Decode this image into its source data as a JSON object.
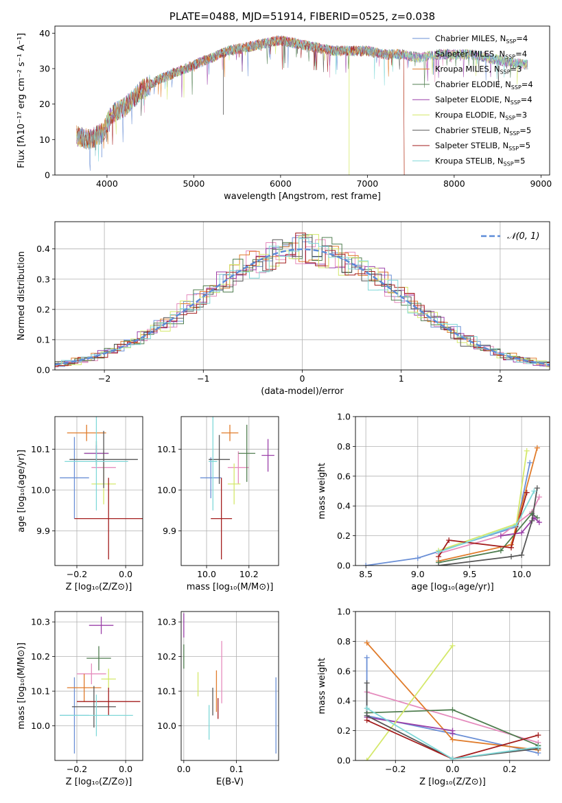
{
  "colors": [
    "#6a8fd6",
    "#e58bbd",
    "#e07b2a",
    "#4f7d4f",
    "#9a3fa8",
    "#d4e86a",
    "#555555",
    "#a31c1c",
    "#7fd8d8"
  ],
  "chart_data": [
    {
      "id": "spectrum",
      "type": "line",
      "title": "PLATE=0488, MJD=51914, FIBERID=0525, z=0.038",
      "xlabel": "wavelength [Angstrom, rest frame]",
      "ylabel": "Flux [fλ10⁻¹⁷ erg cm⁻² s⁻¹ A⁻¹]",
      "xlim": [
        3400,
        9100
      ],
      "ylim": [
        0,
        42
      ],
      "xticks": [
        4000,
        5000,
        6000,
        7000,
        8000,
        9000
      ],
      "yticks": [
        0,
        10,
        20,
        30,
        40
      ],
      "legend": "top-right",
      "series": [
        {
          "name": "Chabrier MILES, N_SSP=4"
        },
        {
          "name": "Salpeter MILES, N_SSP=4"
        },
        {
          "name": "Kroupa MILES, N_SSP=3"
        },
        {
          "name": "Chabrier ELODIE, N_SSP=4"
        },
        {
          "name": "Salpeter ELODIE, N_SSP=4"
        },
        {
          "name": "Kroupa ELODIE, N_SSP=3"
        },
        {
          "name": "Chabrier STELIB, N_SSP=5"
        },
        {
          "name": "Salpeter STELIB, N_SSP=5"
        },
        {
          "name": "Kroupa STELIB, N_SSP=5"
        }
      ],
      "continuum": [
        [
          3650,
          11
        ],
        [
          3800,
          10
        ],
        [
          3950,
          12
        ],
        [
          4050,
          17
        ],
        [
          4200,
          19
        ],
        [
          4400,
          24
        ],
        [
          4600,
          27
        ],
        [
          4800,
          29
        ],
        [
          5000,
          31
        ],
        [
          5200,
          33
        ],
        [
          5400,
          35
        ],
        [
          5600,
          36
        ],
        [
          5800,
          37
        ],
        [
          6000,
          38
        ],
        [
          6200,
          37
        ],
        [
          6400,
          36
        ],
        [
          6600,
          35
        ],
        [
          6800,
          35
        ],
        [
          7000,
          35
        ],
        [
          7200,
          34
        ],
        [
          7400,
          34
        ],
        [
          7600,
          33
        ],
        [
          7800,
          34
        ],
        [
          8000,
          34
        ],
        [
          8200,
          34
        ],
        [
          8400,
          33
        ],
        [
          8600,
          32
        ],
        [
          8850,
          31
        ]
      ]
    },
    {
      "id": "residuals",
      "type": "area",
      "xlabel": "(data-model)/error",
      "ylabel": "Normed distribution",
      "xlim": [
        -2.5,
        2.5
      ],
      "ylim": [
        0,
        0.49
      ],
      "xticks": [
        -2,
        -1,
        0,
        1,
        2
      ],
      "xticklabels": [
        "−2",
        "−1",
        "0",
        "1",
        "2"
      ],
      "yticks": [
        0,
        0.1,
        0.2,
        0.3,
        0.4
      ],
      "yticklabels": [
        "0.0",
        "0.1",
        "0.2",
        "0.3",
        "0.4"
      ],
      "grid": true,
      "legend": "top-right",
      "reference": {
        "name": "𝒩(0, 1)",
        "color": "#5b8bd8"
      }
    },
    {
      "id": "age_vs_Z",
      "type": "scatter",
      "xlabel": "Z [log₁₀(Z/Z⊙)]",
      "ylabel": "age  [log₁₀(age/yr)]",
      "xlim": [
        -0.29,
        0.07
      ],
      "ylim": [
        9.815,
        10.18
      ],
      "xticks": [
        -0.2,
        0.0
      ],
      "xticklabels": [
        "−0.2",
        "0.0"
      ],
      "yticks": [
        9.9,
        10.0,
        10.1
      ],
      "yticklabels": [
        "9.9",
        "10.0",
        "10.1"
      ],
      "grid": true,
      "points": [
        {
          "x": -0.21,
          "y": 10.03,
          "xerr": 0.06,
          "yerr": 0.1,
          "c": 0
        },
        {
          "x": -0.09,
          "y": 10.055,
          "xerr": 0.05,
          "yerr": 0.04,
          "c": 1
        },
        {
          "x": -0.16,
          "y": 10.14,
          "xerr": 0.08,
          "yerr": 0.02,
          "c": 2
        },
        {
          "x": -0.12,
          "y": 10.09,
          "xerr": 0.05,
          "yerr": 0.03,
          "c": 3
        },
        {
          "x": -0.12,
          "y": 10.09,
          "xerr": 0.05,
          "yerr": 0.02,
          "c": 4
        },
        {
          "x": -0.09,
          "y": 10.015,
          "xerr": 0.05,
          "yerr": 0.05,
          "c": 5
        },
        {
          "x": -0.09,
          "y": 10.075,
          "xerr": 0.14,
          "yerr": 0.07,
          "c": 6
        },
        {
          "x": -0.07,
          "y": 9.93,
          "xerr": 0.14,
          "yerr": 0.1,
          "c": 7
        },
        {
          "x": -0.12,
          "y": 10.07,
          "xerr": 0.13,
          "yerr": 0.12,
          "c": 8
        }
      ]
    },
    {
      "id": "age_vs_mass",
      "type": "scatter",
      "xlabel": "mass [log₁₀(M/M⊙)]",
      "ylabel": "",
      "xlim": [
        9.88,
        10.34
      ],
      "ylim": [
        9.815,
        10.18
      ],
      "xticks": [
        10.0,
        10.2
      ],
      "xticklabels": [
        "10.0",
        "10.2"
      ],
      "yticks": [
        9.9,
        10.0,
        10.1
      ],
      "yticklabels": [
        "9.9",
        "10.0",
        "10.1"
      ],
      "grid": true,
      "points": [
        {
          "x": 10.02,
          "y": 10.03,
          "xerr": 0.05,
          "yerr": 0.05,
          "c": 0
        },
        {
          "x": 10.15,
          "y": 10.055,
          "xerr": 0.05,
          "yerr": 0.04,
          "c": 1
        },
        {
          "x": 10.11,
          "y": 10.14,
          "xerr": 0.04,
          "yerr": 0.02,
          "c": 2
        },
        {
          "x": 10.19,
          "y": 10.09,
          "xerr": 0.04,
          "yerr": 0.07,
          "c": 3
        },
        {
          "x": 10.29,
          "y": 10.085,
          "xerr": 0.03,
          "yerr": 0.04,
          "c": 4
        },
        {
          "x": 10.13,
          "y": 10.015,
          "xerr": 0.03,
          "yerr": 0.05,
          "c": 5
        },
        {
          "x": 10.06,
          "y": 10.075,
          "xerr": 0.05,
          "yerr": 0.06,
          "c": 6
        },
        {
          "x": 10.07,
          "y": 9.93,
          "xerr": 0.05,
          "yerr": 0.1,
          "c": 7
        },
        {
          "x": 10.03,
          "y": 10.07,
          "xerr": 0.02,
          "yerr": 0.12,
          "c": 8
        }
      ]
    },
    {
      "id": "massweight_vs_age",
      "type": "line",
      "xlabel": "age  [log₁₀(age/yr)]",
      "ylabel": "mass weight",
      "xlim": [
        8.4,
        10.27
      ],
      "ylim": [
        0,
        1
      ],
      "xticks": [
        8.5,
        9.0,
        9.5,
        10.0
      ],
      "xticklabels": [
        "8.5",
        "9.0",
        "9.5",
        "10.0"
      ],
      "yticks": [
        0,
        0.2,
        0.4,
        0.6,
        0.8,
        1.0
      ],
      "yticklabels": [
        "0.0",
        "0.2",
        "0.4",
        "0.6",
        "0.8",
        "1.0"
      ],
      "grid": true,
      "series": [
        {
          "c": 0,
          "pts": [
            [
              8.5,
              0.0
            ],
            [
              9.0,
              0.05
            ],
            [
              9.95,
              0.26
            ],
            [
              10.08,
              0.69
            ]
          ]
        },
        {
          "c": 1,
          "pts": [
            [
              9.2,
              0.08
            ],
            [
              9.8,
              0.2
            ],
            [
              10.1,
              0.36
            ],
            [
              10.17,
              0.46
            ]
          ]
        },
        {
          "c": 2,
          "pts": [
            [
              9.2,
              0.03
            ],
            [
              9.9,
              0.14
            ],
            [
              10.15,
              0.79
            ]
          ]
        },
        {
          "c": 3,
          "pts": [
            [
              9.2,
              0.02
            ],
            [
              9.8,
              0.1
            ],
            [
              10.1,
              0.35
            ],
            [
              10.15,
              0.32
            ]
          ]
        },
        {
          "c": 4,
          "pts": [
            [
              9.8,
              0.2
            ],
            [
              10.0,
              0.22
            ],
            [
              10.12,
              0.32
            ],
            [
              10.17,
              0.29
            ]
          ]
        },
        {
          "c": 5,
          "pts": [
            [
              9.2,
              0.1
            ],
            [
              9.95,
              0.28
            ],
            [
              10.05,
              0.77
            ]
          ]
        },
        {
          "c": 6,
          "pts": [
            [
              9.2,
              0.0
            ],
            [
              9.9,
              0.06
            ],
            [
              10.0,
              0.07
            ],
            [
              10.1,
              0.3
            ],
            [
              10.15,
              0.52
            ]
          ]
        },
        {
          "c": 7,
          "pts": [
            [
              9.2,
              0.06
            ],
            [
              9.3,
              0.17
            ],
            [
              9.9,
              0.12
            ],
            [
              10.05,
              0.49
            ]
          ]
        },
        {
          "c": 8,
          "pts": [
            [
              9.2,
              0.09
            ],
            [
              9.95,
              0.27
            ],
            [
              10.12,
              0.5
            ]
          ]
        }
      ]
    },
    {
      "id": "mass_vs_Z",
      "type": "scatter",
      "xlabel": "Z [log₁₀(Z/Z⊙)]",
      "ylabel": "mass [log₁₀(M/M⊙)]",
      "xlim": [
        -0.29,
        0.07
      ],
      "ylim": [
        9.9,
        10.33
      ],
      "xticks": [
        -0.2,
        0.0
      ],
      "xticklabels": [
        "−0.2",
        "0.0"
      ],
      "yticks": [
        10.0,
        10.1,
        10.2,
        10.3
      ],
      "yticklabels": [
        "10.0",
        "10.1",
        "10.2",
        "10.3"
      ],
      "grid": true,
      "points": [
        {
          "x": -0.21,
          "y": 10.03,
          "xerr": 0.06,
          "yerr": 0.11,
          "c": 0
        },
        {
          "x": -0.14,
          "y": 10.15,
          "xerr": 0.06,
          "yerr": 0.03,
          "c": 1
        },
        {
          "x": -0.17,
          "y": 10.11,
          "xerr": 0.07,
          "yerr": 0.04,
          "c": 2
        },
        {
          "x": -0.11,
          "y": 10.195,
          "xerr": 0.05,
          "yerr": 0.035,
          "c": 3
        },
        {
          "x": -0.1,
          "y": 10.29,
          "xerr": 0.05,
          "yerr": 0.025,
          "c": 4
        },
        {
          "x": -0.07,
          "y": 10.135,
          "xerr": 0.03,
          "yerr": 0.03,
          "c": 5
        },
        {
          "x": -0.13,
          "y": 10.055,
          "xerr": 0.09,
          "yerr": 0.06,
          "c": 6
        },
        {
          "x": -0.07,
          "y": 10.07,
          "xerr": 0.13,
          "yerr": 0.04,
          "c": 7
        },
        {
          "x": -0.12,
          "y": 10.03,
          "xerr": 0.15,
          "yerr": 0.06,
          "c": 8
        }
      ]
    },
    {
      "id": "mass_vs_EBV",
      "type": "scatter",
      "xlabel": "E(B-V)",
      "ylabel": "",
      "xlim": [
        -0.005,
        0.18
      ],
      "ylim": [
        9.9,
        10.33
      ],
      "xticks": [
        0.0,
        0.1
      ],
      "xticklabels": [
        "0.0",
        "0.1"
      ],
      "yticks": [
        10.0,
        10.1,
        10.2,
        10.3
      ],
      "yticklabels": [
        "10.0",
        "10.1",
        "10.2",
        "10.3"
      ],
      "grid": true,
      "points": [
        {
          "x": 0.175,
          "y": 10.03,
          "xerr": 0,
          "yerr": 0.11,
          "c": 0
        },
        {
          "x": 0.072,
          "y": 10.155,
          "xerr": 0,
          "yerr": 0.09,
          "c": 1
        },
        {
          "x": 0.062,
          "y": 10.1,
          "xerr": 0,
          "yerr": 0.06,
          "c": 2
        },
        {
          "x": 0.0,
          "y": 10.2,
          "xerr": 0,
          "yerr": 0.035,
          "c": 3
        },
        {
          "x": 0.0,
          "y": 10.29,
          "xerr": 0,
          "yerr": 0.035,
          "c": 4
        },
        {
          "x": 0.027,
          "y": 10.12,
          "xerr": 0,
          "yerr": 0.035,
          "c": 5
        },
        {
          "x": 0.055,
          "y": 10.07,
          "xerr": 0,
          "yerr": 0.04,
          "c": 6
        },
        {
          "x": 0.065,
          "y": 10.05,
          "xerr": 0,
          "yerr": 0.03,
          "c": 7
        },
        {
          "x": 0.048,
          "y": 10.01,
          "xerr": 0,
          "yerr": 0.05,
          "c": 8
        }
      ]
    },
    {
      "id": "massweight_vs_Z",
      "type": "line",
      "xlabel": "Z [log₁₀(Z/Z⊙)]",
      "ylabel": "mass weight",
      "xlim": [
        -0.34,
        0.34
      ],
      "ylim": [
        0,
        1
      ],
      "xticks": [
        -0.2,
        0.0,
        0.2
      ],
      "xticklabels": [
        "−0.2",
        "0.0",
        "0.2"
      ],
      "yticks": [
        0,
        0.2,
        0.4,
        0.6,
        0.8,
        1.0
      ],
      "yticklabels": [
        "0.0",
        "0.2",
        "0.4",
        "0.6",
        "0.8",
        "1.0"
      ],
      "grid": true,
      "series": [
        {
          "c": 0,
          "pts": [
            [
              -0.3,
              0.69
            ],
            [
              -0.3,
              0.3
            ],
            [
              0.0,
              0.18
            ],
            [
              0.3,
              0.05
            ]
          ]
        },
        {
          "c": 1,
          "pts": [
            [
              -0.3,
              0.46
            ],
            [
              0.3,
              0.12
            ]
          ]
        },
        {
          "c": 2,
          "pts": [
            [
              -0.3,
              0.79
            ],
            [
              0.0,
              0.14
            ],
            [
              0.3,
              0.07
            ]
          ]
        },
        {
          "c": 3,
          "pts": [
            [
              -0.3,
              0.32
            ],
            [
              0.0,
              0.34
            ],
            [
              0.3,
              0.1
            ]
          ]
        },
        {
          "c": 4,
          "pts": [
            [
              -0.3,
              0.29
            ],
            [
              0.0,
              0.2
            ],
            [
              0.0,
              0.18
            ]
          ]
        },
        {
          "c": 5,
          "pts": [
            [
              -0.3,
              0.0
            ],
            [
              0.0,
              0.77
            ]
          ]
        },
        {
          "c": 6,
          "pts": [
            [
              -0.3,
              0.52
            ],
            [
              -0.3,
              0.3
            ],
            [
              0.0,
              0.01
            ],
            [
              0.3,
              0.08
            ]
          ]
        },
        {
          "c": 7,
          "pts": [
            [
              -0.3,
              0.27
            ],
            [
              0.0,
              0.01
            ],
            [
              0.3,
              0.17
            ]
          ]
        },
        {
          "c": 8,
          "pts": [
            [
              -0.3,
              0.35
            ],
            [
              0.0,
              0.01
            ],
            [
              0.3,
              0.09
            ]
          ]
        }
      ]
    }
  ]
}
